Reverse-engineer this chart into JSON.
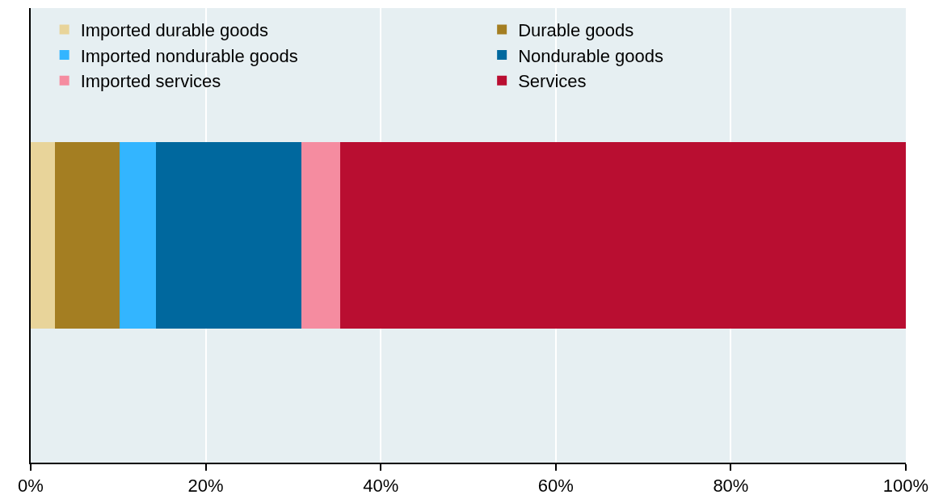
{
  "chart_data": {
    "type": "bar",
    "orientation": "horizontal",
    "stacked": true,
    "categories": [
      null
    ],
    "series": [
      {
        "name": "Imported durable goods",
        "color": "#e8d49a",
        "values": [
          2.8
        ]
      },
      {
        "name": "Durable goods",
        "color": "#a47e22",
        "values": [
          7.4
        ]
      },
      {
        "name": "Imported nondurable goods",
        "color": "#33b5ff",
        "values": [
          4.1
        ]
      },
      {
        "name": "Nondurable goods",
        "color": "#00689e",
        "values": [
          16.6
        ]
      },
      {
        "name": "Imported services",
        "color": "#f58ca0",
        "values": [
          4.5
        ]
      },
      {
        "name": "Services",
        "color": "#b90e31",
        "values": [
          64.6
        ]
      }
    ],
    "xlim": [
      0,
      100
    ],
    "xticks": [
      {
        "value": 0,
        "label": "0%"
      },
      {
        "value": 20,
        "label": "20%"
      },
      {
        "value": 40,
        "label": "40%"
      },
      {
        "value": 60,
        "label": "60%"
      },
      {
        "value": 80,
        "label": "80%"
      },
      {
        "value": 100,
        "label": "100%"
      }
    ],
    "grid": "x",
    "legend": "top",
    "tick_labels": "x"
  }
}
